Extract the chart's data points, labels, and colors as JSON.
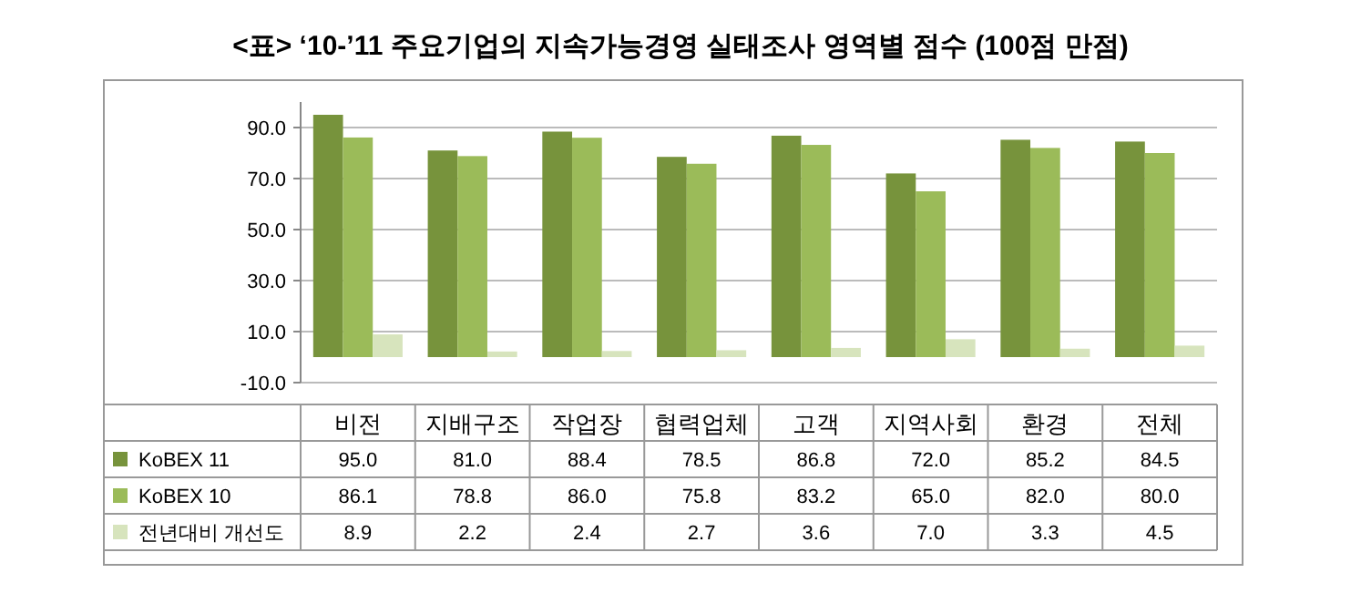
{
  "chart_data": {
    "type": "bar",
    "title": "<표> ‘10-’11 주요기업의 지속가능경영 실태조사 영역별 점수 (100점 만점)",
    "categories": [
      "비전",
      "지배구조",
      "작업장",
      "협력업체",
      "고객",
      "지역사회",
      "환경",
      "전체"
    ],
    "series": [
      {
        "name": "KoBEX 11",
        "color": "#77933c",
        "values": [
          95.0,
          81.0,
          88.4,
          78.5,
          86.8,
          72.0,
          85.2,
          84.5
        ],
        "value_labels": [
          "95.0",
          "81.0",
          "88.4",
          "78.5",
          "86.8",
          "72.0",
          "85.2",
          "84.5"
        ]
      },
      {
        "name": "KoBEX 10",
        "color": "#9bbb59",
        "values": [
          86.1,
          78.8,
          86.0,
          75.8,
          83.2,
          65.0,
          82.0,
          80.0
        ],
        "value_labels": [
          "86.1",
          "78.8",
          "86.0",
          "75.8",
          "83.2",
          "65.0",
          "82.0",
          "80.0"
        ]
      },
      {
        "name": "전년대비 개선도",
        "color": "#d7e4bd",
        "values": [
          8.9,
          2.2,
          2.4,
          2.7,
          3.6,
          7.0,
          3.3,
          4.5
        ],
        "value_labels": [
          "8.9",
          "2.2",
          "2.4",
          "2.7",
          "3.6",
          "7.0",
          "3.3",
          "4.5"
        ]
      }
    ],
    "ylim": [
      -10,
      100
    ],
    "yticks": [
      {
        "value": -10,
        "label": "-10.0"
      },
      {
        "value": 10,
        "label": "10.0"
      },
      {
        "value": 30,
        "label": "30.0"
      },
      {
        "value": 50,
        "label": "50.0"
      },
      {
        "value": 70,
        "label": "70.0"
      },
      {
        "value": 90,
        "label": "90.0"
      }
    ],
    "grid": "y",
    "legend": "bottom"
  }
}
